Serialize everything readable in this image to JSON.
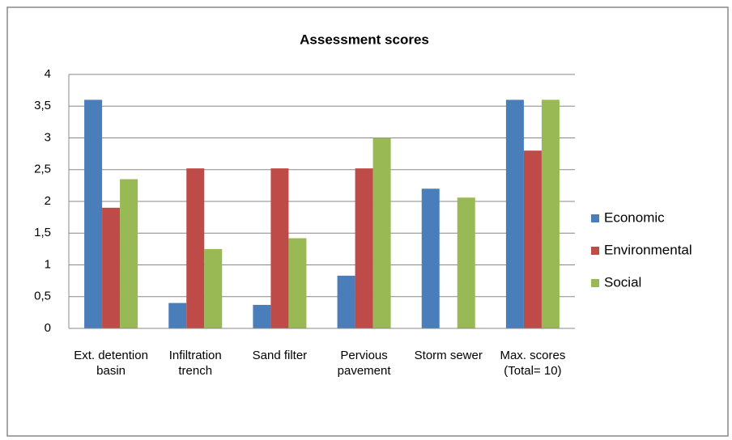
{
  "chart_data": {
    "type": "bar",
    "title": "Assessment scores",
    "categories": [
      "Ext. detention basin",
      "Infiltration trench",
      "Sand filter",
      "Pervious pavement",
      "Storm sewer",
      "Max. scores (Total= 10)"
    ],
    "series": [
      {
        "name": "Economic",
        "color": "#4a7ebb",
        "values": [
          3.6,
          0.4,
          0.37,
          0.83,
          2.2,
          3.6
        ]
      },
      {
        "name": "Environmental",
        "color": "#be4b48",
        "values": [
          1.9,
          2.52,
          2.52,
          2.52,
          0,
          2.8
        ]
      },
      {
        "name": "Social",
        "color": "#98b954",
        "values": [
          2.35,
          1.25,
          1.42,
          3.0,
          2.06,
          3.6
        ]
      }
    ],
    "ylim": [
      0,
      4
    ],
    "yticks": [
      0,
      {
        "value": 0.5,
        "label": "0,5"
      },
      1,
      {
        "value": 1.5,
        "label": "1,5"
      },
      2,
      {
        "value": 2.5,
        "label": "2,5"
      },
      3,
      {
        "value": 3.5,
        "label": "3,5"
      },
      4
    ],
    "grid": true,
    "legend": "right"
  }
}
